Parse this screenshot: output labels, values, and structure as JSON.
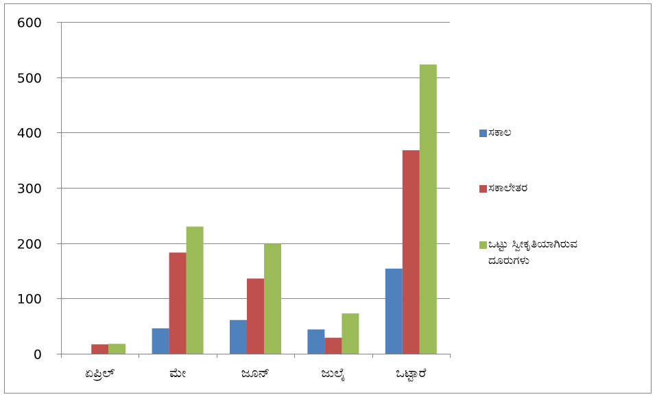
{
  "chart_data": {
    "type": "bar",
    "title": "",
    "xlabel": "",
    "ylabel": "",
    "categories": [
      "ಏಪ್ರಿಲ್",
      "ಮೇ",
      "ಜೂನ್",
      "ಜುಲೈ",
      "ಒಟ್ಟಾರೆ"
    ],
    "series": [
      {
        "name": "ಸಕಾಲ",
        "color": "#4f81bd",
        "values": [
          0,
          46,
          61,
          44,
          154
        ]
      },
      {
        "name": "ಸಕಾಲೇತರ",
        "color": "#c0504d",
        "values": [
          17,
          183,
          136,
          29,
          368
        ]
      },
      {
        "name_lines": [
          "ಒಟ್ಟು ಸ್ವೀಕೃತಿಯಾಗಿರುವ",
          "ದೂರುಗಳು"
        ],
        "color": "#9bbb59",
        "values": [
          18,
          230,
          199,
          73,
          523
        ]
      }
    ],
    "ylim": [
      0,
      600
    ],
    "yticks": [
      "0",
      "100",
      "200",
      "300",
      "400",
      "500",
      "600"
    ],
    "grid": true,
    "legend_position": "right"
  }
}
